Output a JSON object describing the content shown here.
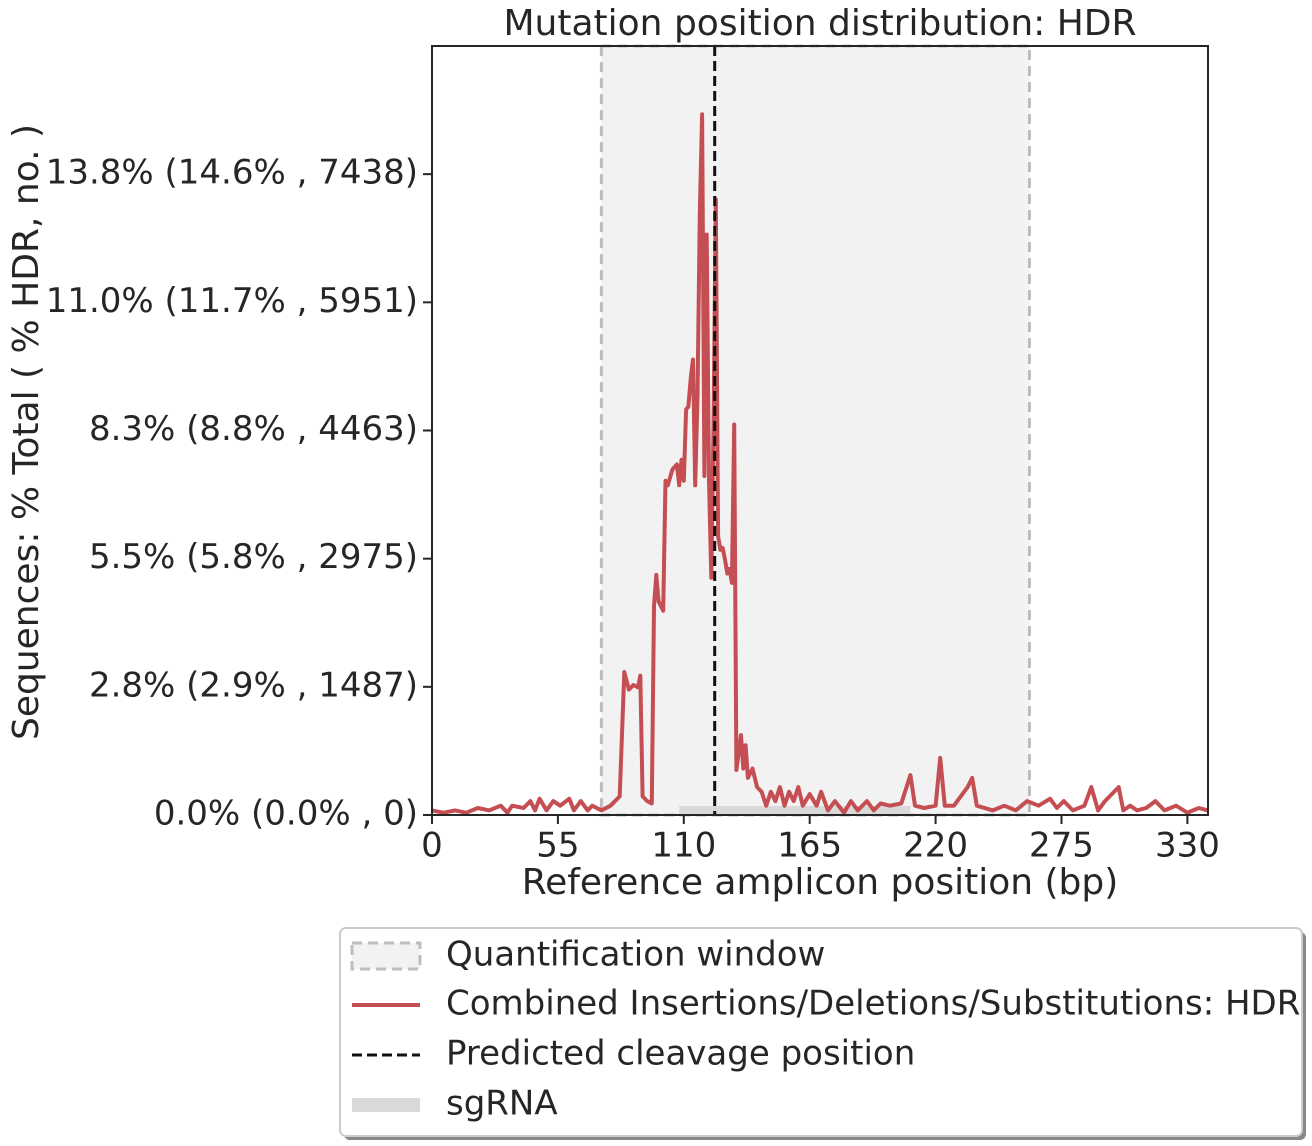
{
  "chart_data": {
    "type": "line",
    "title": "Mutation position distribution: HDR",
    "x_label": "Reference amplicon position (bp)",
    "y_label": "Sequences: % Total ( % HDR, no. )",
    "xlim": [
      0,
      339
    ],
    "ylim": [
      0,
      16.56
    ],
    "xticks": [
      0,
      55,
      110,
      165,
      220,
      275,
      330
    ],
    "yticks": [
      {
        "value": 0,
        "label": "0.0% (0.0% , 0)"
      },
      {
        "value": 2.76,
        "label": "2.8% (2.9% , 1487)"
      },
      {
        "value": 5.52,
        "label": "5.5% (5.8% , 2975)"
      },
      {
        "value": 8.28,
        "label": "8.3% (8.8% , 4463)"
      },
      {
        "value": 11.04,
        "label": "11.0% (11.7% , 5951)"
      },
      {
        "value": 13.8,
        "label": "13.8% (14.6% , 7438)"
      }
    ],
    "quantification_window": {
      "name": "Quantification window",
      "range": [
        74,
        261
      ],
      "color": "#bdbdbd"
    },
    "cleavage": {
      "name": "Predicted cleavage position",
      "x": 123.5,
      "color": "#111111"
    },
    "sgrna": {
      "name": "sgRNA",
      "range": [
        108,
        209
      ],
      "color": "#d9d9d9"
    },
    "x": [
      0,
      5,
      10,
      15,
      20,
      25,
      30,
      33,
      35,
      40,
      43,
      45,
      47,
      50,
      53,
      56,
      60,
      62,
      65,
      68,
      70,
      74,
      78,
      82,
      84,
      86,
      88,
      90,
      91,
      92,
      94,
      96,
      97,
      98,
      99,
      101,
      102,
      103,
      105,
      107,
      108,
      109,
      110,
      111,
      112,
      113,
      114,
      115,
      116,
      117,
      118,
      119,
      120,
      121,
      122,
      123,
      124,
      125,
      126,
      127,
      128,
      129,
      130,
      131,
      132,
      133,
      135,
      136,
      137,
      138,
      140,
      142,
      144,
      146,
      148,
      150,
      152,
      154,
      156,
      158,
      160,
      162,
      165,
      168,
      170,
      173,
      176,
      180,
      183,
      186,
      190,
      193,
      196,
      200,
      205,
      209,
      211,
      215,
      220,
      222,
      224,
      228,
      234,
      236,
      238,
      245,
      250,
      255,
      260,
      265,
      270,
      273,
      276,
      280,
      285,
      288,
      291,
      294,
      300,
      302,
      305,
      308,
      312,
      316,
      320,
      325,
      330,
      335,
      339
    ],
    "series": [
      {
        "name": "Combined Insertions/Deletions/Substitutions: HDR",
        "color": "#c44e52",
        "values": [
          0.1,
          0.05,
          0.1,
          0.05,
          0.15,
          0.1,
          0.2,
          0.05,
          0.2,
          0.15,
          0.3,
          0.1,
          0.35,
          0.1,
          0.3,
          0.2,
          0.35,
          0.1,
          0.3,
          0.1,
          0.2,
          0.1,
          0.2,
          0.4,
          3.08,
          2.7,
          2.8,
          2.75,
          3.0,
          0.4,
          0.3,
          0.25,
          4.5,
          5.17,
          4.6,
          4.4,
          7.2,
          7.1,
          7.44,
          7.55,
          7.1,
          7.65,
          7.2,
          8.73,
          8.8,
          9.4,
          9.81,
          7.1,
          9.0,
          12.94,
          15.09,
          7.3,
          12.5,
          7.2,
          5.11,
          8.5,
          13.26,
          6.0,
          5.71,
          5.75,
          5.5,
          5.2,
          5.3,
          5.0,
          8.41,
          0.97,
          1.72,
          1.0,
          1.5,
          0.8,
          1.0,
          0.6,
          0.5,
          0.2,
          0.5,
          0.3,
          0.6,
          0.2,
          0.5,
          0.3,
          0.6,
          0.2,
          0.45,
          0.2,
          0.5,
          0.1,
          0.3,
          0.05,
          0.3,
          0.1,
          0.3,
          0.1,
          0.25,
          0.2,
          0.25,
          0.86,
          0.2,
          0.15,
          0.2,
          1.23,
          0.2,
          0.2,
          0.6,
          0.8,
          0.2,
          0.1,
          0.2,
          0.1,
          0.3,
          0.2,
          0.35,
          0.15,
          0.3,
          0.1,
          0.2,
          0.6,
          0.1,
          0.3,
          0.6,
          0.1,
          0.2,
          0.1,
          0.15,
          0.3,
          0.1,
          0.2,
          0.05,
          0.15,
          0.1
        ]
      }
    ]
  }
}
